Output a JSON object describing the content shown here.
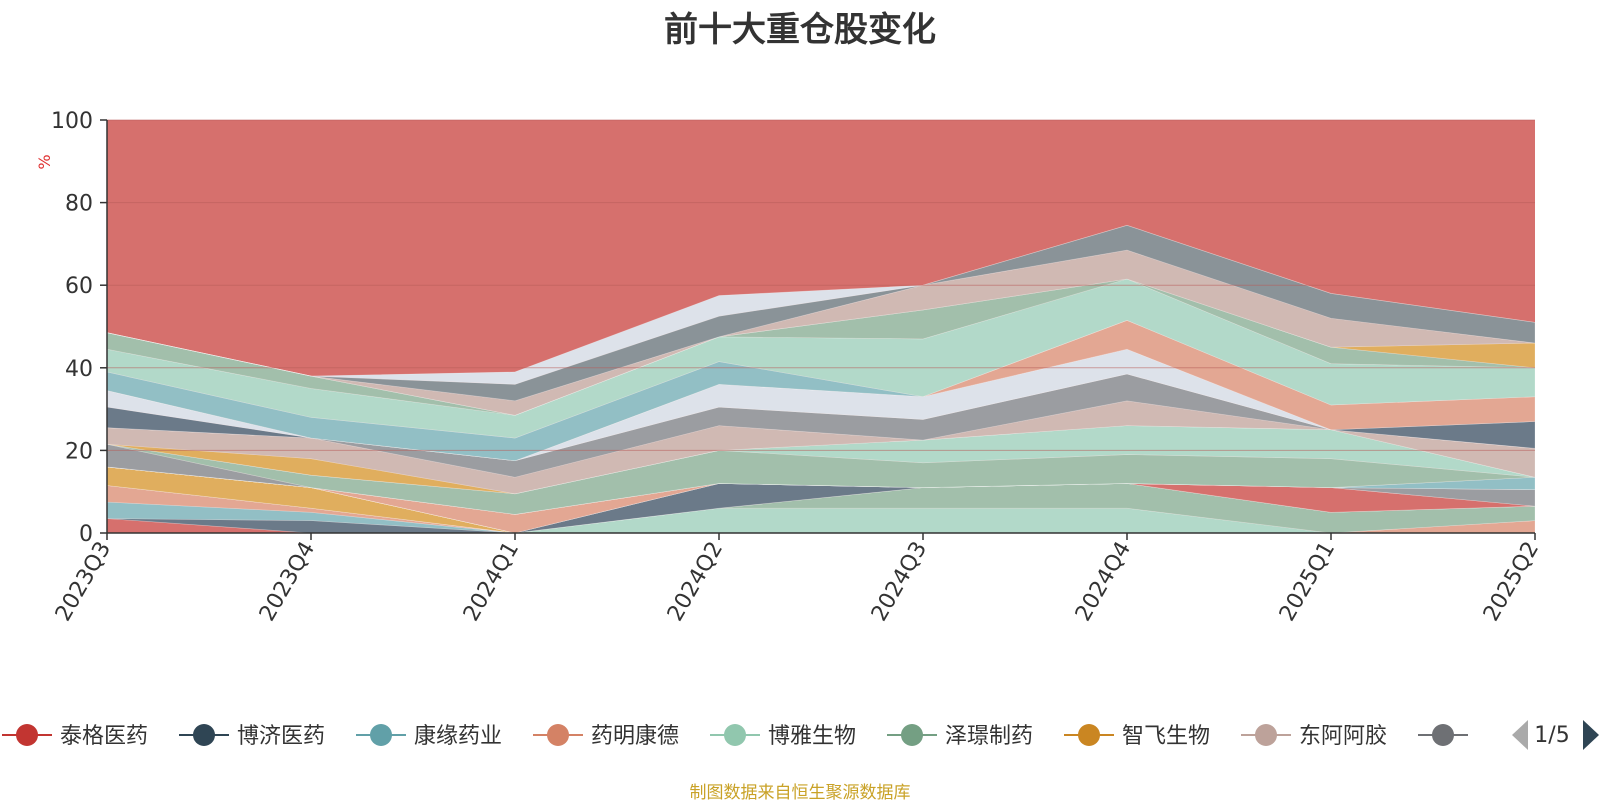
{
  "title": "前十大重仓股变化",
  "source": "制图数据来自恒生聚源数据库",
  "legend_page": "1/5",
  "colors": {
    "top_area": "#d6706d",
    "grid": "#b85c5a",
    "axis": "#333333",
    "pager_prev": "#aaaaaa",
    "pager_next": "#2f4554"
  },
  "chart_data": {
    "type": "area",
    "stacked": true,
    "ylabel": "%",
    "ylim": [
      0,
      100
    ],
    "yticks": [
      0,
      20,
      40,
      60,
      80,
      100
    ],
    "categories": [
      "2023Q3",
      "2023Q4",
      "2024Q1",
      "2024Q2",
      "2024Q3",
      "2024Q4",
      "2025Q1",
      "2025Q2"
    ],
    "legend_position": "bottom",
    "legend_entries": [
      {
        "name": "泰格医药",
        "color": "#c23531"
      },
      {
        "name": "博济医药",
        "color": "#2f4554"
      },
      {
        "name": "康缘药业",
        "color": "#61a0a8"
      },
      {
        "name": "药明康德",
        "color": "#d48265"
      },
      {
        "name": "博雅生物",
        "color": "#91c7ae"
      },
      {
        "name": "泽璟制药",
        "color": "#749f83"
      },
      {
        "name": "智飞生物",
        "color": "#ca8622"
      },
      {
        "name": "东阿阿胶",
        "color": "#bda29a"
      },
      {
        "name": "",
        "color": "#6e7074"
      }
    ],
    "bands": [
      {
        "color": "#d6706d",
        "values": [
          3.5,
          0,
          0,
          0,
          0,
          0,
          0,
          0
        ]
      },
      {
        "color": "#6b7a89",
        "values": [
          0,
          3,
          0,
          0,
          0,
          0,
          0,
          0
        ]
      },
      {
        "color": "#92bfc5",
        "values": [
          4,
          2,
          0,
          0,
          0,
          0,
          0,
          0
        ]
      },
      {
        "color": "#e3a793",
        "values": [
          4,
          1,
          0,
          0,
          0,
          0,
          0,
          3
        ]
      },
      {
        "color": "#b2d9c9",
        "values": [
          0,
          0,
          0,
          6,
          6,
          6,
          0,
          0
        ]
      },
      {
        "color": "#a2bfab",
        "values": [
          0,
          0,
          0,
          0,
          5,
          6,
          5,
          3.5
        ]
      },
      {
        "color": "#e0ae5e",
        "values": [
          4.5,
          5,
          0,
          0,
          0,
          0,
          0,
          0
        ]
      },
      {
        "color": "#6b7a89",
        "values": [
          0,
          0,
          0,
          6,
          0,
          0,
          0,
          0
        ]
      },
      {
        "color": "#d6706d",
        "values": [
          0,
          0,
          0,
          0,
          0,
          0,
          6,
          0
        ]
      },
      {
        "color": "#d0b9b3",
        "values": [
          0,
          0,
          0,
          0,
          0,
          0,
          0,
          0
        ]
      },
      {
        "color": "#9b9da1",
        "values": [
          0,
          0,
          0,
          0,
          0,
          0,
          0,
          4
        ]
      },
      {
        "color": "#e3a793",
        "values": [
          0,
          0,
          4.5,
          0,
          0,
          0,
          0,
          0
        ]
      },
      {
        "color": "#d6706d",
        "values": [
          0,
          0,
          0,
          0,
          0,
          0,
          0,
          0
        ]
      },
      {
        "color": "#92bfc5",
        "values": [
          0,
          0,
          0,
          0,
          0,
          0,
          0,
          3
        ]
      },
      {
        "color": "#9b9da1",
        "values": [
          5.5,
          0,
          0,
          0,
          0,
          0,
          0,
          0
        ]
      },
      {
        "color": "#a2bfab",
        "values": [
          0,
          3,
          5,
          8,
          6,
          7,
          7,
          0
        ]
      },
      {
        "color": "#b2d9c9",
        "values": [
          0,
          0,
          0,
          0,
          5.5,
          7,
          7,
          0
        ]
      },
      {
        "color": "#e0ae5e",
        "values": [
          0,
          4,
          0,
          0,
          0,
          0,
          0,
          0
        ]
      },
      {
        "color": "#d0b9b3",
        "values": [
          4,
          5,
          4,
          6,
          0,
          6,
          0,
          7
        ]
      },
      {
        "color": "#9b9da1",
        "values": [
          0,
          0,
          4,
          4.5,
          5,
          6.5,
          0,
          0
        ]
      },
      {
        "color": "#6b7a89",
        "values": [
          5,
          0,
          0,
          0,
          0,
          0,
          0,
          6.5
        ]
      },
      {
        "color": "#dde2ea",
        "values": [
          4,
          0,
          0,
          5.5,
          5.5,
          6,
          0,
          0
        ]
      },
      {
        "color": "#e3a793",
        "values": [
          0,
          0,
          0,
          0,
          0,
          7,
          6,
          6
        ]
      },
      {
        "color": "#92bfc5",
        "values": [
          4.5,
          5,
          5.5,
          5.5,
          0,
          0,
          0,
          0
        ]
      },
      {
        "color": "#b2d9c9",
        "values": [
          5.5,
          7,
          5.5,
          6,
          14,
          10,
          10,
          7
        ]
      },
      {
        "color": "#a2bfab",
        "values": [
          4,
          3,
          0,
          0,
          7,
          0,
          4,
          0
        ]
      },
      {
        "color": "#e0ae5e",
        "values": [
          0,
          0,
          0,
          0,
          0,
          0,
          0,
          6
        ]
      },
      {
        "color": "#d0b9b3",
        "values": [
          0,
          0,
          3.5,
          0,
          6,
          7,
          7,
          0
        ]
      },
      {
        "color": "#8a9398",
        "values": [
          0,
          0,
          4,
          5,
          0,
          6,
          6,
          5
        ]
      },
      {
        "color": "#dde2ea",
        "values": [
          0,
          0,
          3,
          5,
          0,
          0,
          0,
          0
        ]
      }
    ]
  }
}
